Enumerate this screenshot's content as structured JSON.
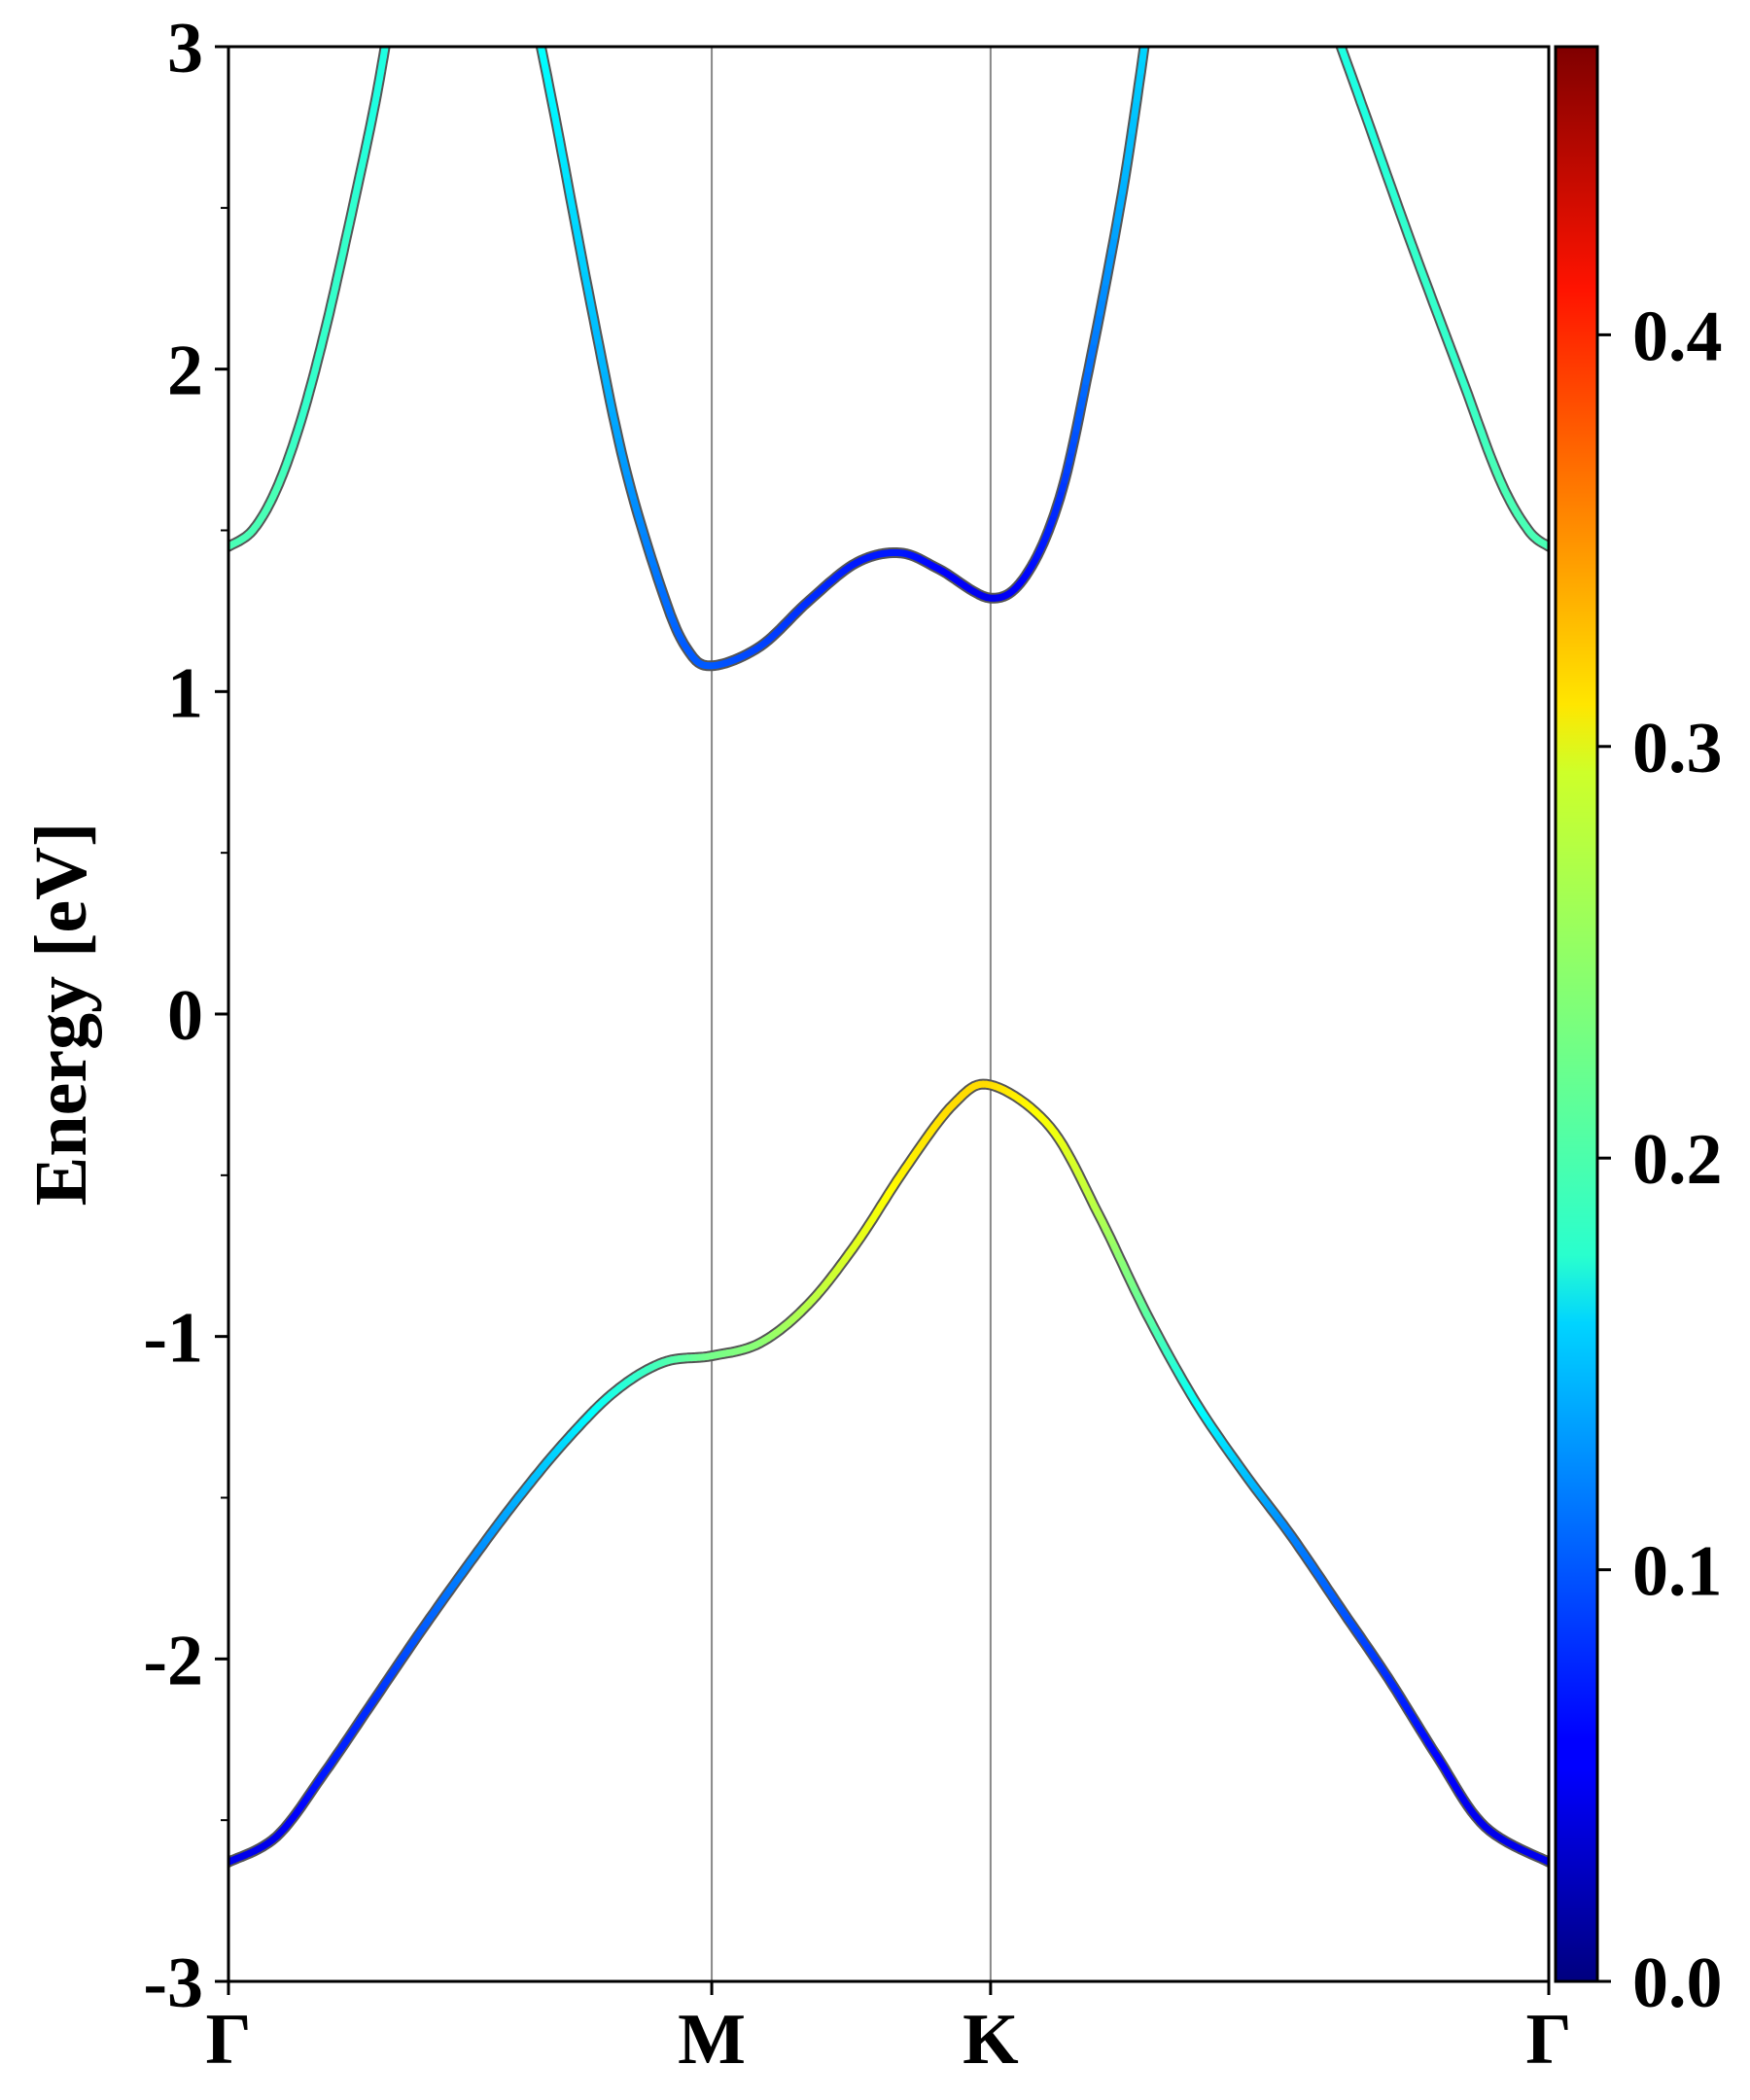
{
  "chart_data": {
    "type": "line",
    "title": "",
    "xlabel": "",
    "ylabel": "Energy [eV]",
    "ylim": [
      -3,
      3
    ],
    "y_ticks": [
      "-3",
      "-2",
      "-1",
      "0",
      "1",
      "2",
      "3"
    ],
    "y_tick_values": [
      -3,
      -2,
      -1,
      0,
      1,
      2,
      3
    ],
    "k_path": [
      {
        "label": "Γ",
        "k": 0.0
      },
      {
        "label": "M",
        "k": 1.0
      },
      {
        "label": "K",
        "k": 1.577
      },
      {
        "label": "Γ",
        "k": 2.732
      }
    ],
    "xlim": [
      0,
      2.732
    ],
    "grid": false,
    "legend": "none",
    "colormap": "jet",
    "colorbar": {
      "range": [
        0.0,
        0.47
      ],
      "ticks": [
        "0.0",
        "0.1",
        "0.2",
        "0.3",
        "0.4"
      ],
      "tick_values": [
        0.0,
        0.1,
        0.2,
        0.3,
        0.4
      ]
    },
    "series": [
      {
        "points": [
          {
            "k": 0.0,
            "E": -2.63,
            "w": 0.05
          },
          {
            "k": 0.1,
            "E": -2.55,
            "w": 0.05
          },
          {
            "k": 0.2,
            "E": -2.35,
            "w": 0.07
          },
          {
            "k": 0.3,
            "E": -2.13,
            "w": 0.08
          },
          {
            "k": 0.4,
            "E": -1.91,
            "w": 0.1
          },
          {
            "k": 0.5,
            "E": -1.7,
            "w": 0.12
          },
          {
            "k": 0.6,
            "E": -1.5,
            "w": 0.14
          },
          {
            "k": 0.7,
            "E": -1.32,
            "w": 0.16
          },
          {
            "k": 0.8,
            "E": -1.17,
            "w": 0.19
          },
          {
            "k": 0.9,
            "E": -1.08,
            "w": 0.21
          },
          {
            "k": 1.0,
            "E": -1.06,
            "w": 0.23
          },
          {
            "k": 1.1,
            "E": -1.02,
            "w": 0.24
          },
          {
            "k": 1.2,
            "E": -0.9,
            "w": 0.26
          },
          {
            "k": 1.3,
            "E": -0.71,
            "w": 0.28
          },
          {
            "k": 1.4,
            "E": -0.48,
            "w": 0.3
          },
          {
            "k": 1.5,
            "E": -0.28,
            "w": 0.31
          },
          {
            "k": 1.577,
            "E": -0.22,
            "w": 0.31
          },
          {
            "k": 1.7,
            "E": -0.35,
            "w": 0.29
          },
          {
            "k": 1.8,
            "E": -0.62,
            "w": 0.26
          },
          {
            "k": 1.9,
            "E": -0.93,
            "w": 0.22
          },
          {
            "k": 2.0,
            "E": -1.2,
            "w": 0.18
          },
          {
            "k": 2.1,
            "E": -1.42,
            "w": 0.15
          },
          {
            "k": 2.2,
            "E": -1.62,
            "w": 0.12
          },
          {
            "k": 2.3,
            "E": -1.84,
            "w": 0.1
          },
          {
            "k": 2.4,
            "E": -2.06,
            "w": 0.08
          },
          {
            "k": 2.5,
            "E": -2.3,
            "w": 0.06
          },
          {
            "k": 2.6,
            "E": -2.52,
            "w": 0.05
          },
          {
            "k": 2.732,
            "E": -2.63,
            "w": 0.05
          }
        ]
      },
      {
        "points": [
          {
            "k": 0.0,
            "E": 1.45,
            "w": 0.21
          },
          {
            "k": 0.05,
            "E": 1.5,
            "w": 0.21
          },
          {
            "k": 0.1,
            "E": 1.63,
            "w": 0.21
          },
          {
            "k": 0.15,
            "E": 1.84,
            "w": 0.2
          },
          {
            "k": 0.2,
            "E": 2.12,
            "w": 0.2
          },
          {
            "k": 0.25,
            "E": 2.45,
            "w": 0.2
          },
          {
            "k": 0.3,
            "E": 2.8,
            "w": 0.19
          },
          {
            "k": 0.33,
            "E": 3.05,
            "w": 0.19
          }
        ]
      },
      {
        "points": [
          {
            "k": 0.64,
            "E": 3.05,
            "w": 0.18
          },
          {
            "k": 0.68,
            "E": 2.75,
            "w": 0.17
          },
          {
            "k": 0.75,
            "E": 2.2,
            "w": 0.15
          },
          {
            "k": 0.82,
            "E": 1.7,
            "w": 0.13
          },
          {
            "k": 0.9,
            "E": 1.3,
            "w": 0.11
          },
          {
            "k": 0.95,
            "E": 1.13,
            "w": 0.1
          },
          {
            "k": 1.0,
            "E": 1.08,
            "w": 0.1
          },
          {
            "k": 1.1,
            "E": 1.14,
            "w": 0.09
          },
          {
            "k": 1.2,
            "E": 1.28,
            "w": 0.08
          },
          {
            "k": 1.3,
            "E": 1.4,
            "w": 0.07
          },
          {
            "k": 1.39,
            "E": 1.43,
            "w": 0.07
          },
          {
            "k": 1.47,
            "E": 1.38,
            "w": 0.06
          },
          {
            "k": 1.577,
            "E": 1.29,
            "w": 0.05
          },
          {
            "k": 1.65,
            "E": 1.36,
            "w": 0.06
          },
          {
            "k": 1.72,
            "E": 1.6,
            "w": 0.08
          },
          {
            "k": 1.78,
            "E": 2.0,
            "w": 0.11
          },
          {
            "k": 1.85,
            "E": 2.55,
            "w": 0.14
          },
          {
            "k": 1.9,
            "E": 3.05,
            "w": 0.16
          }
        ]
      },
      {
        "points": [
          {
            "k": 2.29,
            "E": 3.05,
            "w": 0.19
          },
          {
            "k": 2.35,
            "E": 2.8,
            "w": 0.19
          },
          {
            "k": 2.45,
            "E": 2.38,
            "w": 0.2
          },
          {
            "k": 2.55,
            "E": 1.98,
            "w": 0.2
          },
          {
            "k": 2.63,
            "E": 1.66,
            "w": 0.21
          },
          {
            "k": 2.69,
            "E": 1.5,
            "w": 0.21
          },
          {
            "k": 2.732,
            "E": 1.45,
            "w": 0.21
          }
        ]
      }
    ]
  }
}
